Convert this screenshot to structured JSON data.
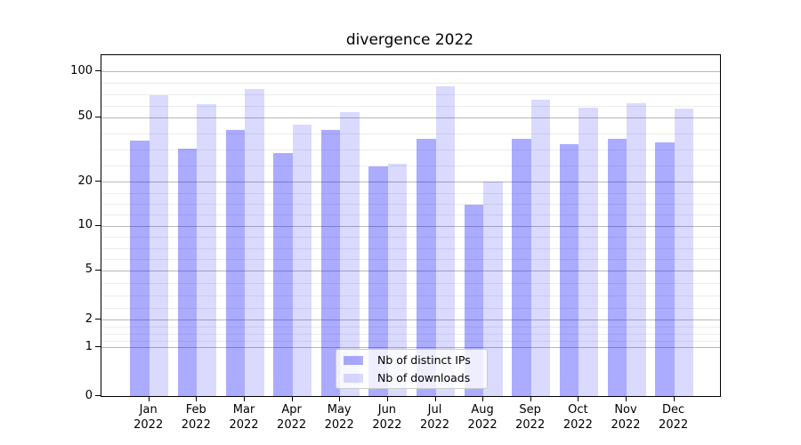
{
  "title": "divergence 2022",
  "legend": {
    "items": [
      {
        "label": "Nb of distinct IPs",
        "color": "rgba(0,0,255,0.33)"
      },
      {
        "label": "Nb of downloads",
        "color": "rgba(0,0,255,0.145)"
      }
    ]
  },
  "chart_data": {
    "type": "bar",
    "title": "divergence 2022",
    "categories": [
      "Jan 2022",
      "Feb 2022",
      "Mar 2022",
      "Apr 2022",
      "May 2022",
      "Jun 2022",
      "Jul 2022",
      "Aug 2022",
      "Sep 2022",
      "Oct 2022",
      "Nov 2022",
      "Dec 2022"
    ],
    "series": [
      {
        "name": "Nb of distinct IPs",
        "color": "rgba(0,0,255,0.33)",
        "values": [
          36,
          32,
          42,
          30,
          42,
          25,
          37,
          14,
          37,
          34,
          37,
          35
        ]
      },
      {
        "name": "Nb of downloads",
        "color": "rgba(0,0,255,0.145)",
        "values": [
          70,
          61,
          77,
          45,
          54,
          26,
          80,
          20,
          65,
          58,
          62,
          57
        ]
      }
    ],
    "xlabel": "",
    "ylabel": "",
    "y_scale": "symlog",
    "y_ticks": [
      0,
      1,
      2,
      5,
      10,
      20,
      50,
      100
    ],
    "ylim": [
      0,
      130
    ],
    "grid": "horizontal major + faint minor",
    "legend_position": "lower center"
  }
}
